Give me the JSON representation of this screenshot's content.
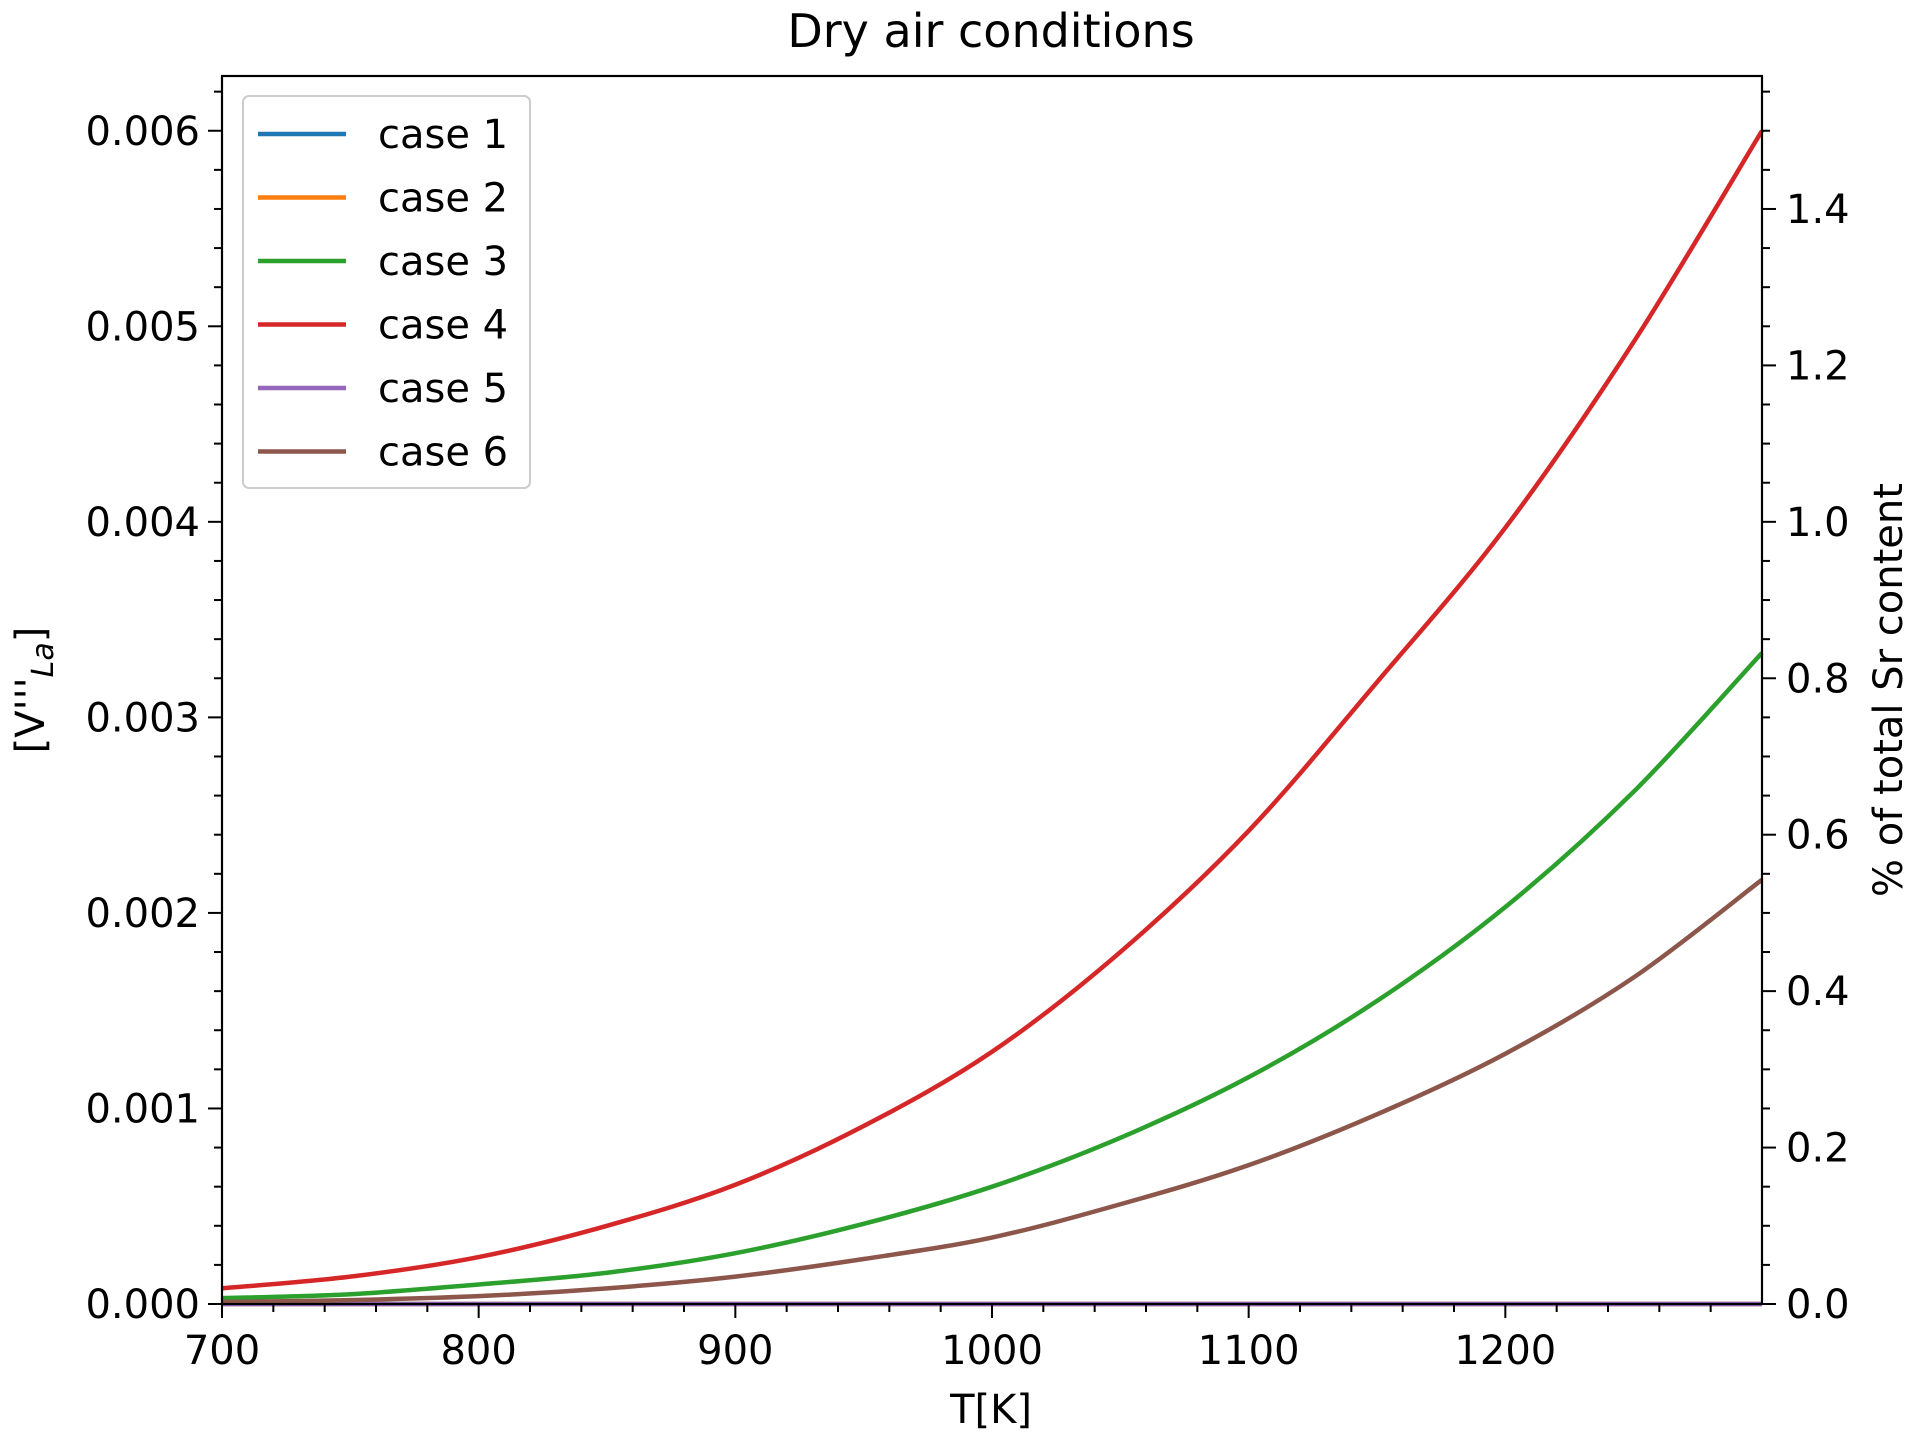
{
  "chart_data": {
    "type": "line",
    "title": "Dry air conditions",
    "xlabel": "T[K]",
    "ylabel": "[V'''_La]",
    "ylabel_main": "[V'''",
    "ylabel_sub": "La",
    "ylabel_close": "]",
    "y2label": "% of total Sr content",
    "xlim": [
      700,
      1300
    ],
    "ylim": [
      0,
      0.00628
    ],
    "y2lim": [
      0,
      1.57
    ],
    "x_ticks": [
      "700",
      "800",
      "900",
      "1000",
      "1100",
      "1200"
    ],
    "y_ticks": [
      "0.000",
      "0.001",
      "0.002",
      "0.003",
      "0.004",
      "0.005",
      "0.006"
    ],
    "y2_ticks": [
      "0.0",
      "0.2",
      "0.4",
      "0.6",
      "0.8",
      "1.0",
      "1.2",
      "1.4"
    ],
    "grid": false,
    "legend_position": "top-left",
    "x": [
      700,
      750,
      800,
      850,
      900,
      950,
      1000,
      1050,
      1100,
      1150,
      1200,
      1250,
      1300
    ],
    "series": [
      {
        "name": "case 1",
        "color": "#1f77b4",
        "values": [
          0,
          0,
          0,
          0,
          0,
          0,
          0,
          0,
          0,
          0,
          0,
          0,
          0
        ]
      },
      {
        "name": "case 2",
        "color": "#ff7f0e",
        "values": [
          0,
          0,
          0,
          0,
          0,
          0,
          0,
          0,
          0,
          0,
          0,
          0,
          0
        ]
      },
      {
        "name": "case 3",
        "color": "#2ca02c",
        "values": [
          3e-05,
          5e-05,
          0.0001,
          0.00016,
          0.00026,
          0.00041,
          0.0006,
          0.00085,
          0.00116,
          0.00155,
          0.00203,
          0.00262,
          0.00333
        ]
      },
      {
        "name": "case 4",
        "color": "#d62728",
        "values": [
          8e-05,
          0.00014,
          0.00024,
          0.0004,
          0.00061,
          0.00091,
          0.00129,
          0.0018,
          0.00242,
          0.00318,
          0.00397,
          0.00492,
          0.006
        ]
      },
      {
        "name": "case 5",
        "color": "#9467bd",
        "values": [
          0,
          0,
          0,
          0,
          0,
          0,
          0,
          0,
          0,
          0,
          0,
          0,
          0
        ]
      },
      {
        "name": "case 6",
        "color": "#8c564b",
        "values": [
          1e-05,
          2e-05,
          4e-05,
          8e-05,
          0.00014,
          0.00023,
          0.00034,
          0.00051,
          0.00071,
          0.00097,
          0.00128,
          0.00167,
          0.00217
        ]
      }
    ]
  }
}
